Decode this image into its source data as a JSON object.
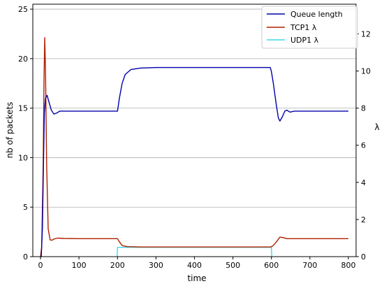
{
  "chart_data": {
    "type": "line",
    "xlabel": "time",
    "ylabel": "nb of packets",
    "y2label": "λ",
    "xlim": [
      -20,
      820
    ],
    "ylim": [
      0,
      25.5
    ],
    "y2lim": [
      0,
      13.6
    ],
    "x_ticks": [
      "0",
      "100",
      "200",
      "300",
      "400",
      "500",
      "600",
      "700",
      "800"
    ],
    "y_ticks": [
      "0",
      "5",
      "10",
      "15",
      "20",
      "25"
    ],
    "y2_ticks": [
      "0",
      "2",
      "4",
      "6",
      "8",
      "10",
      "12"
    ],
    "grid": "horizontal",
    "legend": "top-right",
    "series": [
      {
        "name": "Queue length",
        "axis": "left",
        "color": "#0000aa",
        "points": [
          [
            0,
            0
          ],
          [
            2,
            0
          ],
          [
            5,
            3
          ],
          [
            8,
            10
          ],
          [
            10,
            14.5
          ],
          [
            13,
            16
          ],
          [
            17,
            16.3
          ],
          [
            22,
            15.6
          ],
          [
            28,
            14.8
          ],
          [
            35,
            14.4
          ],
          [
            42,
            14.5
          ],
          [
            50,
            14.7
          ],
          [
            60,
            14.7
          ],
          [
            100,
            14.7
          ],
          [
            150,
            14.7
          ],
          [
            200,
            14.7
          ],
          [
            205,
            16
          ],
          [
            212,
            17.5
          ],
          [
            220,
            18.4
          ],
          [
            235,
            18.9
          ],
          [
            260,
            19.05
          ],
          [
            300,
            19.1
          ],
          [
            400,
            19.1
          ],
          [
            500,
            19.1
          ],
          [
            597,
            19.1
          ],
          [
            600,
            18.7
          ],
          [
            605,
            17.5
          ],
          [
            612,
            15.5
          ],
          [
            618,
            14
          ],
          [
            622,
            13.7
          ],
          [
            628,
            14.1
          ],
          [
            635,
            14.7
          ],
          [
            640,
            14.8
          ],
          [
            648,
            14.6
          ],
          [
            660,
            14.7
          ],
          [
            700,
            14.7
          ],
          [
            800,
            14.7
          ]
        ]
      },
      {
        "name": "TCP1 λ",
        "axis": "right",
        "color": "#b02000",
        "points": [
          [
            0,
            0
          ],
          [
            3,
            0.5
          ],
          [
            7,
            5
          ],
          [
            9,
            9.5
          ],
          [
            11,
            11.8
          ],
          [
            13,
            10
          ],
          [
            16,
            5
          ],
          [
            20,
            1.5
          ],
          [
            25,
            0.9
          ],
          [
            30,
            0.88
          ],
          [
            35,
            0.95
          ],
          [
            45,
            1
          ],
          [
            60,
            0.98
          ],
          [
            100,
            0.97
          ],
          [
            150,
            0.97
          ],
          [
            200,
            0.97
          ],
          [
            205,
            0.8
          ],
          [
            212,
            0.6
          ],
          [
            225,
            0.54
          ],
          [
            260,
            0.52
          ],
          [
            400,
            0.52
          ],
          [
            598,
            0.52
          ],
          [
            605,
            0.6
          ],
          [
            615,
            0.85
          ],
          [
            622,
            1.05
          ],
          [
            630,
            1.03
          ],
          [
            640,
            0.97
          ],
          [
            700,
            0.97
          ],
          [
            800,
            0.97
          ]
        ]
      },
      {
        "name": "UDP1 λ",
        "axis": "right",
        "color": "#3fd8e8",
        "points": [
          [
            199,
            0
          ],
          [
            200,
            0.5
          ],
          [
            600,
            0.5
          ],
          [
            601,
            0
          ]
        ]
      }
    ]
  }
}
